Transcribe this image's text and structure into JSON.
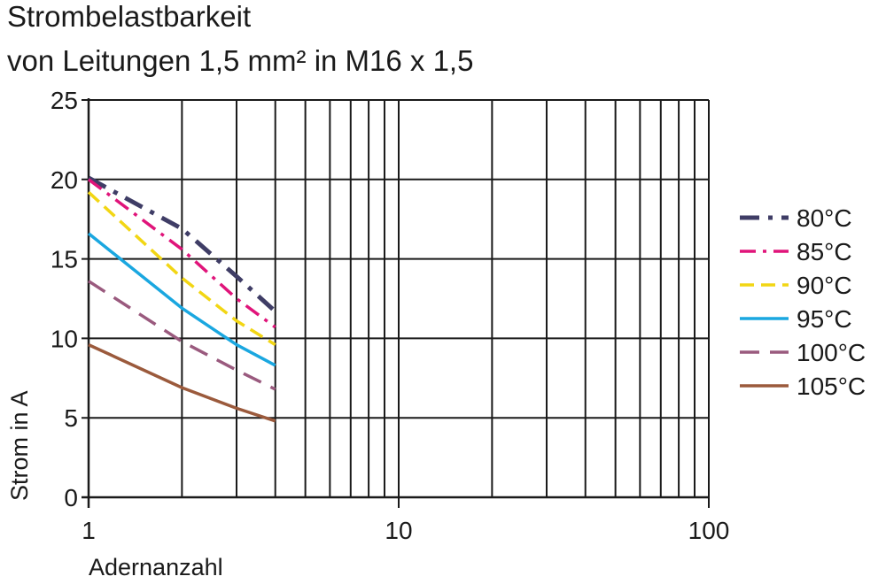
{
  "chart_data": {
    "type": "line",
    "title": "Strombelastbarkeit",
    "subtitle": "von Leitungen 1,5 mm² in M16 x 1,5",
    "xlabel": "Adernanzahl",
    "ylabel": "Strom in A",
    "xscale": "log",
    "xlim": [
      1,
      100
    ],
    "ylim": [
      0,
      25
    ],
    "xticks": [
      1,
      10,
      100
    ],
    "xtick_labels": [
      "1",
      "10",
      "100"
    ],
    "yticks": [
      0,
      5,
      10,
      15,
      20,
      25
    ],
    "ytick_labels": [
      "0",
      "5",
      "10",
      "15",
      "20",
      "25"
    ],
    "grid": true,
    "legend_position": "right",
    "series": [
      {
        "name": "80°C",
        "color": "#3f3d66",
        "style": "dashdot-thick",
        "x": [
          1,
          2,
          3,
          4
        ],
        "y": [
          20.1,
          16.9,
          13.9,
          11.7
        ]
      },
      {
        "name": "85°C",
        "color": "#e0147a",
        "style": "dashdot",
        "x": [
          1,
          2,
          3,
          4
        ],
        "y": [
          20.0,
          15.6,
          12.5,
          10.7
        ]
      },
      {
        "name": "90°C",
        "color": "#f2d614",
        "style": "dashed",
        "x": [
          1,
          2,
          3,
          4
        ],
        "y": [
          19.2,
          13.8,
          11.1,
          9.6
        ]
      },
      {
        "name": "95°C",
        "color": "#1aa7e0",
        "style": "solid",
        "x": [
          1,
          2,
          3,
          4
        ],
        "y": [
          16.6,
          11.9,
          9.6,
          8.3
        ]
      },
      {
        "name": "100°C",
        "color": "#9a5a7e",
        "style": "longdash",
        "x": [
          1,
          2,
          3,
          4
        ],
        "y": [
          13.6,
          9.8,
          8.0,
          6.8
        ]
      },
      {
        "name": "105°C",
        "color": "#9b5a3c",
        "style": "solid",
        "x": [
          1,
          2,
          3,
          4
        ],
        "y": [
          9.6,
          6.9,
          5.6,
          4.8
        ]
      }
    ]
  }
}
